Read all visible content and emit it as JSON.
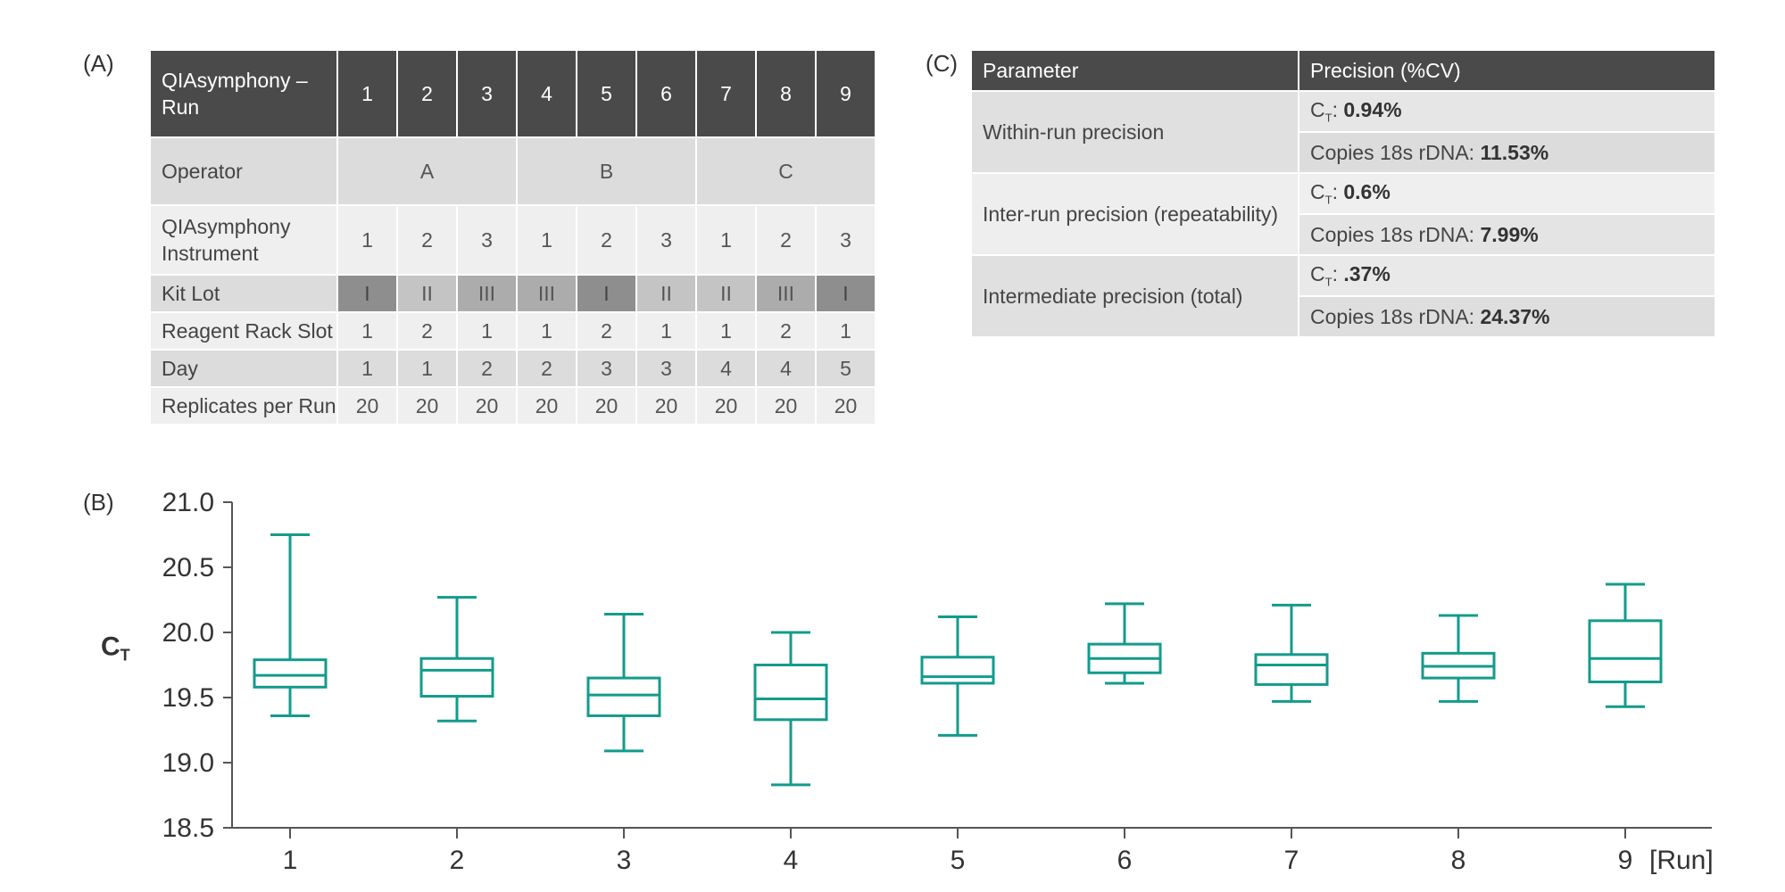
{
  "panels": {
    "a": "(A)",
    "b": "(B)",
    "c": "(C)"
  },
  "table_a": {
    "corner": "QIAsymphony – Run",
    "runs": [
      "1",
      "2",
      "3",
      "4",
      "5",
      "6",
      "7",
      "8",
      "9"
    ],
    "operator": {
      "label": "Operator",
      "groups": [
        "A",
        "B",
        "C"
      ]
    },
    "instrument": {
      "label": "QIAsymphony Instrument",
      "values": [
        "1",
        "2",
        "3",
        "1",
        "2",
        "3",
        "1",
        "2",
        "3"
      ]
    },
    "kit_lot": {
      "label": "Kit Lot",
      "values": [
        "I",
        "II",
        "III",
        "III",
        "I",
        "II",
        "II",
        "III",
        "I"
      ]
    },
    "reagent_rack_slot": {
      "label": "Reagent Rack Slot",
      "values": [
        "1",
        "2",
        "1",
        "1",
        "2",
        "1",
        "1",
        "2",
        "1"
      ]
    },
    "day": {
      "label": "Day",
      "values": [
        "1",
        "1",
        "2",
        "2",
        "3",
        "3",
        "4",
        "4",
        "5"
      ]
    },
    "replicates": {
      "label": "Replicates per Run",
      "values": [
        "20",
        "20",
        "20",
        "20",
        "20",
        "20",
        "20",
        "20",
        "20"
      ]
    }
  },
  "table_c": {
    "headers": [
      "Parameter",
      "Precision (%CV)"
    ],
    "rows": [
      {
        "parameter": "Within-run precision",
        "ct_prefix": "C",
        "ct_sub": "T",
        "ct_sep": ": ",
        "ct_value": "0.94%",
        "copies_label": "Copies 18s rDNA: ",
        "copies_value": "11.53%"
      },
      {
        "parameter": "Inter-run precision (repeatability)",
        "ct_prefix": "C",
        "ct_sub": "T",
        "ct_sep": ": ",
        "ct_value": "0.6%",
        "copies_label": "Copies 18s rDNA: ",
        "copies_value": "7.99%"
      },
      {
        "parameter": "Intermediate precision (total)",
        "ct_prefix": "C",
        "ct_sub": "T",
        "ct_sep": ": ",
        "ct_value": ".37%",
        "copies_label": "Copies 18s rDNA: ",
        "copies_value": "24.37%"
      }
    ]
  },
  "chart_data": {
    "type": "box",
    "ylabel_main": "C",
    "ylabel_sub": "T",
    "xlabel_suffix": "[Run]",
    "ylim": [
      18.5,
      21.0
    ],
    "yticks": [
      "18.5",
      "19.0",
      "19.5",
      "20.0",
      "20.5",
      "21.0"
    ],
    "categories": [
      "1",
      "2",
      "3",
      "4",
      "5",
      "6",
      "7",
      "8",
      "9"
    ],
    "color": "#139b8c",
    "boxes": [
      {
        "min": 19.36,
        "q1": 19.58,
        "median": 19.67,
        "q3": 19.79,
        "max": 20.75
      },
      {
        "min": 19.32,
        "q1": 19.51,
        "median": 19.71,
        "q3": 19.8,
        "max": 20.27
      },
      {
        "min": 19.09,
        "q1": 19.36,
        "median": 19.52,
        "q3": 19.65,
        "max": 20.14
      },
      {
        "min": 18.83,
        "q1": 19.33,
        "median": 19.49,
        "q3": 19.75,
        "max": 20.0
      },
      {
        "min": 19.21,
        "q1": 19.61,
        "median": 19.66,
        "q3": 19.81,
        "max": 20.12
      },
      {
        "min": 19.61,
        "q1": 19.69,
        "median": 19.8,
        "q3": 19.91,
        "max": 20.22
      },
      {
        "min": 19.47,
        "q1": 19.6,
        "median": 19.75,
        "q3": 19.83,
        "max": 20.21
      },
      {
        "min": 19.47,
        "q1": 19.65,
        "median": 19.74,
        "q3": 19.84,
        "max": 20.13
      },
      {
        "min": 19.43,
        "q1": 19.62,
        "median": 19.8,
        "q3": 20.09,
        "max": 20.37
      }
    ]
  }
}
